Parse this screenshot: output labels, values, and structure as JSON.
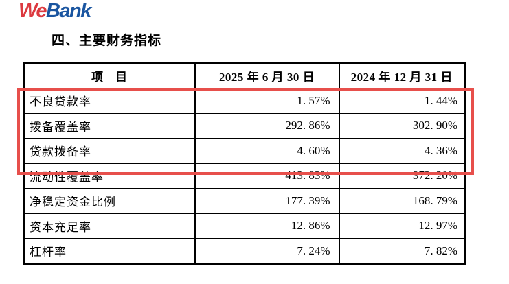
{
  "logo": {
    "we": "We",
    "bank": "Bank"
  },
  "colors": {
    "logo_we": "#dc3a40",
    "logo_bank": "#1a55a0",
    "highlight_red": "#e74f4b",
    "table_border": "#000000"
  },
  "section_title": "四、主要财务指标",
  "table": {
    "columns": [
      "项　目",
      "2025 年 6 月 30 日",
      "2024 年 12 月 31 日"
    ],
    "rows": [
      {
        "item": "不良贷款率",
        "jun2025": "1. 57%",
        "dec2024": "1. 44%"
      },
      {
        "item": "拨备覆盖率",
        "jun2025": "292. 86%",
        "dec2024": "302. 90%"
      },
      {
        "item": "贷款拨备率",
        "jun2025": "4. 60%",
        "dec2024": "4. 36%"
      },
      {
        "item": "流动性覆盖率",
        "jun2025": "413. 83%",
        "dec2024": "372. 20%"
      },
      {
        "item": "净稳定资金比例",
        "jun2025": "177. 39%",
        "dec2024": "168. 79%"
      },
      {
        "item": "资本充足率",
        "jun2025": "12. 86%",
        "dec2024": "12. 97%"
      },
      {
        "item": "杠杆率",
        "jun2025": "7. 24%",
        "dec2024": "7. 82%"
      }
    ],
    "highlighted_rows": [
      0,
      1,
      2
    ]
  }
}
